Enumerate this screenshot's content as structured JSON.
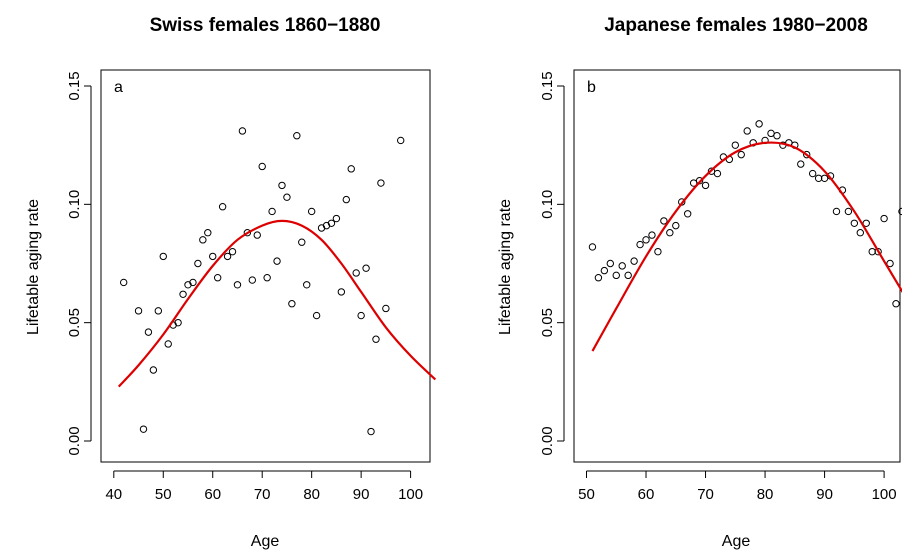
{
  "chart_data": [
    {
      "type": "scatter",
      "title": "Swiss females 1860−1880",
      "xlabel": "Age",
      "ylabel": "Lifetable aging rate",
      "panel_label": "a",
      "xlim": [
        40,
        105
      ],
      "ylim": [
        0,
        0.15
      ],
      "xticks": [
        40,
        50,
        60,
        70,
        80,
        90,
        100
      ],
      "xtick_labels": [
        "40",
        "50",
        "60",
        "70",
        "80",
        "90",
        "100"
      ],
      "yticks": [
        0,
        0.05,
        0.1,
        0.15
      ],
      "ytick_labels": [
        "0.00",
        "0.05",
        "0.10",
        "0.15"
      ],
      "colors": {
        "points": "#000000",
        "fit": "#dd0000"
      },
      "series": [
        {
          "kind": "points",
          "x": [
            42,
            45,
            46,
            47,
            48,
            49,
            50,
            51,
            52,
            53,
            54,
            55,
            56,
            57,
            58,
            59,
            60,
            61,
            62,
            63,
            64,
            65,
            66,
            67,
            68,
            69,
            70,
            71,
            72,
            73,
            74,
            75,
            76,
            77,
            78,
            79,
            80,
            81,
            82,
            83,
            84,
            85,
            86,
            87,
            88,
            89,
            90,
            91,
            92,
            93,
            94,
            95,
            98
          ],
          "y": [
            0.067,
            0.055,
            0.005,
            0.046,
            0.03,
            0.055,
            0.078,
            0.041,
            0.049,
            0.05,
            0.062,
            0.066,
            0.067,
            0.075,
            0.085,
            0.088,
            0.078,
            0.069,
            0.099,
            0.078,
            0.08,
            0.066,
            0.131,
            0.088,
            0.068,
            0.087,
            0.116,
            0.069,
            0.097,
            0.076,
            0.108,
            0.103,
            0.058,
            0.129,
            0.084,
            0.066,
            0.097,
            0.053,
            0.09,
            0.091,
            0.092,
            0.094,
            0.063,
            0.102,
            0.115,
            0.071,
            0.053,
            0.073,
            0.004,
            0.043,
            0.109,
            0.056,
            0.127
          ]
        },
        {
          "kind": "line",
          "x": [
            41,
            45,
            50,
            55,
            60,
            65,
            70,
            74,
            78,
            82,
            86,
            90,
            95,
            100,
            105
          ],
          "y": [
            0.023,
            0.032,
            0.045,
            0.06,
            0.074,
            0.085,
            0.091,
            0.093,
            0.091,
            0.085,
            0.075,
            0.063,
            0.048,
            0.036,
            0.026
          ]
        }
      ]
    },
    {
      "type": "scatter",
      "title": "Japanese females 1980−2008",
      "xlabel": "Age",
      "ylabel": "Lifetable aging rate",
      "panel_label": "b",
      "xlim": [
        50,
        105
      ],
      "ylim": [
        0,
        0.15
      ],
      "xticks": [
        50,
        60,
        70,
        80,
        90,
        100
      ],
      "xtick_labels": [
        "50",
        "60",
        "70",
        "80",
        "90",
        "100"
      ],
      "yticks": [
        0,
        0.05,
        0.1,
        0.15
      ],
      "ytick_labels": [
        "0.00",
        "0.05",
        "0.10",
        "0.15"
      ],
      "colors": {
        "points": "#000000",
        "fit": "#dd0000"
      },
      "series": [
        {
          "kind": "points",
          "x": [
            51,
            52,
            53,
            54,
            55,
            56,
            57,
            58,
            59,
            60,
            61,
            62,
            63,
            64,
            65,
            66,
            67,
            68,
            69,
            70,
            71,
            72,
            73,
            74,
            75,
            76,
            77,
            78,
            79,
            80,
            81,
            82,
            83,
            84,
            85,
            86,
            87,
            88,
            89,
            90,
            91,
            92,
            93,
            94,
            95,
            96,
            97,
            98,
            99,
            100,
            101,
            102,
            103,
            104,
            105
          ],
          "y": [
            0.082,
            0.069,
            0.072,
            0.075,
            0.07,
            0.074,
            0.07,
            0.076,
            0.083,
            0.085,
            0.087,
            0.08,
            0.093,
            0.088,
            0.091,
            0.101,
            0.096,
            0.109,
            0.11,
            0.108,
            0.114,
            0.113,
            0.12,
            0.119,
            0.125,
            0.121,
            0.131,
            0.126,
            0.134,
            0.127,
            0.13,
            0.129,
            0.125,
            0.126,
            0.125,
            0.117,
            0.121,
            0.113,
            0.111,
            0.111,
            0.112,
            0.097,
            0.106,
            0.097,
            0.092,
            0.088,
            0.092,
            0.08,
            0.08,
            0.094,
            0.075,
            0.058,
            0.097,
            0.059,
            0.097
          ]
        },
        {
          "kind": "line",
          "x": [
            51,
            55,
            60,
            65,
            70,
            75,
            80,
            85,
            90,
            95,
            100,
            105
          ],
          "y": [
            0.038,
            0.056,
            0.078,
            0.097,
            0.112,
            0.122,
            0.126,
            0.124,
            0.114,
            0.097,
            0.076,
            0.055
          ]
        }
      ]
    }
  ]
}
